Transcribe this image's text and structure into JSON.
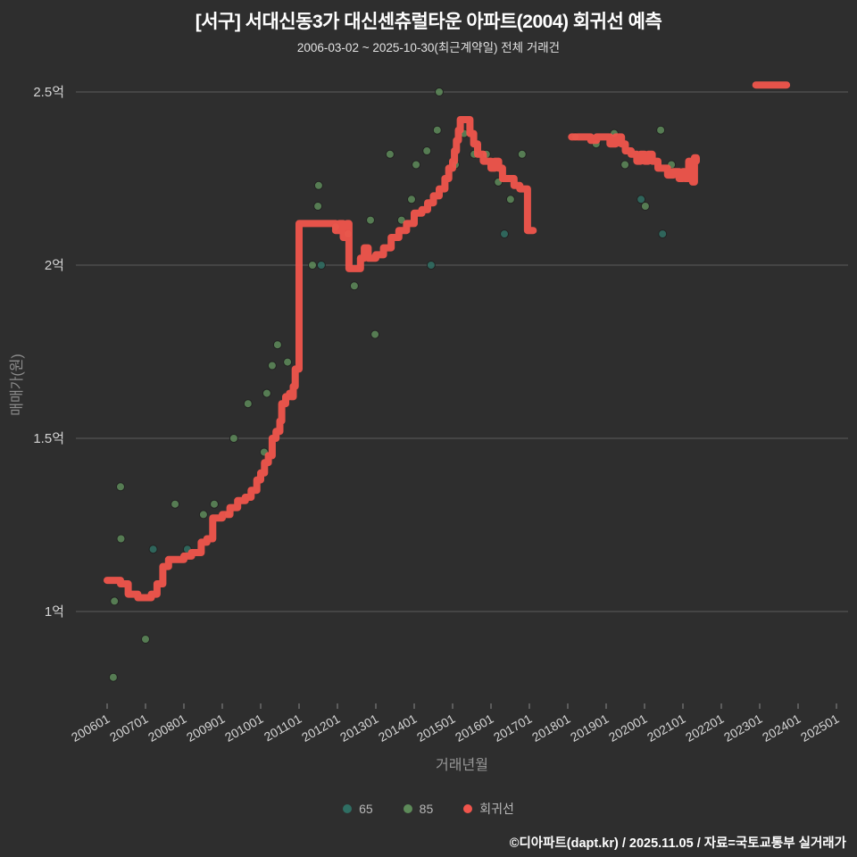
{
  "header": {
    "title": "[서구] 서대신동3가 대신센츄럴타운 아파트(2004) 회귀선 예측",
    "subtitle": "2006-03-02 ~ 2025-10-30(최근계약일) 전체 거래건"
  },
  "footer": {
    "credit": "©디아파트(dapt.kr) / 2025.11.05 / 자료=국토교통부 실거래가"
  },
  "chart_data": {
    "type": "scatter+step-line",
    "title": "[서구] 서대신동3가 대신센츄럴타운 아파트(2004) 회귀선 예측",
    "xlabel": "거래년월",
    "ylabel": "매매가(원)",
    "grid": true,
    "legend_position": "bottom",
    "x_ticks": [
      "200601",
      "200701",
      "200801",
      "200901",
      "201001",
      "201101",
      "201201",
      "201301",
      "201401",
      "201501",
      "201601",
      "201701",
      "201801",
      "201901",
      "202001",
      "202101",
      "202201",
      "202301",
      "202401",
      "202501"
    ],
    "y_ticks": [
      {
        "label": "2.5억",
        "value": 2.5
      },
      {
        "label": "2억",
        "value": 2.0
      },
      {
        "label": "1.5억",
        "value": 1.5
      },
      {
        "label": "1억",
        "value": 1.0
      }
    ],
    "ylim": [
      0.72,
      2.62
    ],
    "x_unit": "거래년월 (decimal year)",
    "y_unit": "억원",
    "series": [
      {
        "name": "65",
        "type": "scatter",
        "color": "#2f6e63",
        "points": [
          [
            2007.2,
            1.18
          ],
          [
            2008.09,
            1.18
          ],
          [
            2011.58,
            2.0
          ],
          [
            2014.44,
            2.0
          ],
          [
            2016.35,
            2.09
          ],
          [
            2019.91,
            2.19
          ],
          [
            2020.47,
            2.09
          ]
        ]
      },
      {
        "name": "85",
        "type": "scatter",
        "color": "#5d8a59",
        "points": [
          [
            2006.16,
            0.81
          ],
          [
            2006.19,
            1.03
          ],
          [
            2006.35,
            1.36
          ],
          [
            2006.36,
            1.21
          ],
          [
            2007.0,
            0.92
          ],
          [
            2007.77,
            1.31
          ],
          [
            2008.51,
            1.28
          ],
          [
            2008.79,
            1.31
          ],
          [
            2009.16,
            1.28
          ],
          [
            2009.3,
            1.5
          ],
          [
            2009.67,
            1.6
          ],
          [
            2010.09,
            1.46
          ],
          [
            2010.16,
            1.63
          ],
          [
            2010.3,
            1.71
          ],
          [
            2010.44,
            1.77
          ],
          [
            2010.7,
            1.72
          ],
          [
            2011.35,
            2.0
          ],
          [
            2011.49,
            2.17
          ],
          [
            2011.51,
            2.23
          ],
          [
            2011.95,
            2.11
          ],
          [
            2012.28,
            2.09
          ],
          [
            2012.44,
            1.94
          ],
          [
            2012.86,
            2.13
          ],
          [
            2012.98,
            1.8
          ],
          [
            2013.37,
            2.32
          ],
          [
            2013.67,
            2.13
          ],
          [
            2013.93,
            2.19
          ],
          [
            2014.05,
            2.29
          ],
          [
            2014.33,
            2.33
          ],
          [
            2014.6,
            2.39
          ],
          [
            2014.65,
            2.5
          ],
          [
            2015.07,
            2.29
          ],
          [
            2015.3,
            2.38
          ],
          [
            2015.56,
            2.32
          ],
          [
            2015.88,
            2.32
          ],
          [
            2016.19,
            2.24
          ],
          [
            2016.51,
            2.19
          ],
          [
            2016.81,
            2.32
          ],
          [
            2018.2,
            2.37
          ],
          [
            2018.74,
            2.35
          ],
          [
            2019.21,
            2.38
          ],
          [
            2019.49,
            2.29
          ],
          [
            2020.02,
            2.17
          ],
          [
            2020.42,
            2.39
          ],
          [
            2020.7,
            2.29
          ]
        ]
      },
      {
        "name": "회귀선",
        "type": "step-line",
        "color": "#f0554c",
        "segments": [
          [
            [
              2006.0,
              1.09
            ],
            [
              2006.35,
              1.08
            ],
            [
              2006.55,
              1.05
            ],
            [
              2006.8,
              1.04
            ],
            [
              2007.15,
              1.05
            ],
            [
              2007.3,
              1.08
            ],
            [
              2007.45,
              1.13
            ],
            [
              2007.6,
              1.15
            ],
            [
              2008.0,
              1.16
            ],
            [
              2008.2,
              1.17
            ],
            [
              2008.45,
              1.2
            ],
            [
              2008.6,
              1.21
            ],
            [
              2008.75,
              1.27
            ],
            [
              2009.0,
              1.28
            ],
            [
              2009.2,
              1.3
            ],
            [
              2009.4,
              1.32
            ],
            [
              2009.6,
              1.33
            ],
            [
              2009.75,
              1.35
            ],
            [
              2009.9,
              1.38
            ],
            [
              2010.0,
              1.4
            ],
            [
              2010.1,
              1.43
            ],
            [
              2010.2,
              1.45
            ],
            [
              2010.3,
              1.5
            ],
            [
              2010.4,
              1.52
            ],
            [
              2010.5,
              1.55
            ],
            [
              2010.55,
              1.6
            ],
            [
              2010.65,
              1.62
            ],
            [
              2010.75,
              1.63
            ],
            [
              2010.8,
              1.62
            ],
            [
              2010.85,
              1.65
            ],
            [
              2010.9,
              1.7
            ],
            [
              2011.0,
              2.12
            ],
            [
              2011.85,
              2.12
            ],
            [
              2011.95,
              2.1
            ],
            [
              2012.05,
              2.12
            ],
            [
              2012.15,
              2.08
            ],
            [
              2012.25,
              2.12
            ],
            [
              2012.3,
              1.99
            ],
            [
              2012.5,
              1.99
            ],
            [
              2012.6,
              2.02
            ],
            [
              2012.7,
              2.05
            ],
            [
              2012.8,
              2.02
            ],
            [
              2013.0,
              2.03
            ],
            [
              2013.2,
              2.05
            ],
            [
              2013.4,
              2.08
            ],
            [
              2013.6,
              2.1
            ],
            [
              2013.8,
              2.12
            ],
            [
              2014.0,
              2.15
            ],
            [
              2014.2,
              2.16
            ],
            [
              2014.35,
              2.18
            ],
            [
              2014.5,
              2.2
            ],
            [
              2014.65,
              2.22
            ],
            [
              2014.8,
              2.25
            ],
            [
              2014.9,
              2.28
            ],
            [
              2015.0,
              2.3
            ],
            [
              2015.05,
              2.33
            ],
            [
              2015.1,
              2.36
            ],
            [
              2015.15,
              2.39
            ],
            [
              2015.2,
              2.42
            ],
            [
              2015.35,
              2.42
            ],
            [
              2015.45,
              2.38
            ],
            [
              2015.55,
              2.35
            ],
            [
              2015.65,
              2.32
            ],
            [
              2015.8,
              2.3
            ],
            [
              2016.0,
              2.28
            ],
            [
              2016.1,
              2.3
            ],
            [
              2016.2,
              2.28
            ],
            [
              2016.3,
              2.25
            ],
            [
              2016.5,
              2.25
            ],
            [
              2016.6,
              2.23
            ],
            [
              2016.75,
              2.22
            ],
            [
              2016.9,
              2.22
            ],
            [
              2016.95,
              2.1
            ],
            [
              2017.1,
              2.1
            ]
          ],
          [
            [
              2018.1,
              2.37
            ],
            [
              2018.5,
              2.37
            ],
            [
              2018.6,
              2.36
            ],
            [
              2018.75,
              2.37
            ],
            [
              2019.0,
              2.37
            ],
            [
              2019.1,
              2.35
            ],
            [
              2019.25,
              2.37
            ],
            [
              2019.4,
              2.35
            ],
            [
              2019.5,
              2.33
            ],
            [
              2019.65,
              2.32
            ],
            [
              2019.8,
              2.3
            ],
            [
              2019.9,
              2.32
            ],
            [
              2020.0,
              2.3
            ],
            [
              2020.1,
              2.32
            ],
            [
              2020.2,
              2.3
            ],
            [
              2020.35,
              2.28
            ],
            [
              2020.5,
              2.28
            ],
            [
              2020.6,
              2.26
            ],
            [
              2020.75,
              2.27
            ],
            [
              2020.9,
              2.25
            ],
            [
              2021.0,
              2.27
            ],
            [
              2021.05,
              2.25
            ],
            [
              2021.15,
              2.3
            ],
            [
              2021.25,
              2.24
            ],
            [
              2021.3,
              2.31
            ],
            [
              2021.35,
              2.3
            ]
          ],
          [
            [
              2022.9,
              2.52
            ],
            [
              2023.7,
              2.52
            ]
          ]
        ]
      }
    ]
  }
}
